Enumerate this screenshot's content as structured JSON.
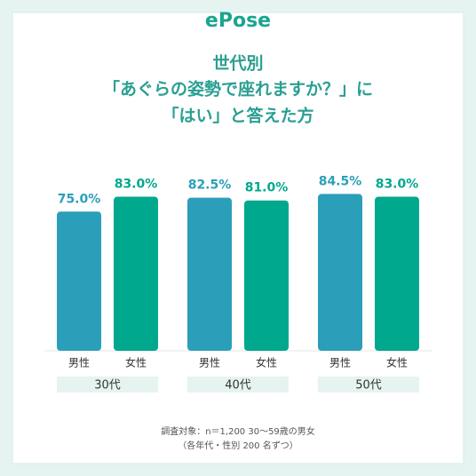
{
  "brand": "ePose",
  "chart_data": {
    "type": "bar",
    "title": [
      "世代別",
      "「あぐらの姿勢で座れますか？」に",
      "「はい」と答えた方"
    ],
    "categories": [
      "30代",
      "40代",
      "50代"
    ],
    "series": [
      {
        "name": "男性",
        "color": "#2b9fba",
        "values": [
          75.0,
          82.5,
          84.5
        ],
        "value_labels": [
          "75.0%",
          "82.5%",
          "84.5%"
        ]
      },
      {
        "name": "女性",
        "color": "#00a88e",
        "values": [
          83.0,
          81.0,
          83.0
        ],
        "value_labels": [
          "83.0%",
          "81.0%",
          "83.0%"
        ]
      }
    ],
    "ylim": [
      0,
      100
    ],
    "notes": [
      "調査対象：n＝1,200 30～59歳の男女",
      "（各年代・性別 200 名ずつ）"
    ]
  }
}
